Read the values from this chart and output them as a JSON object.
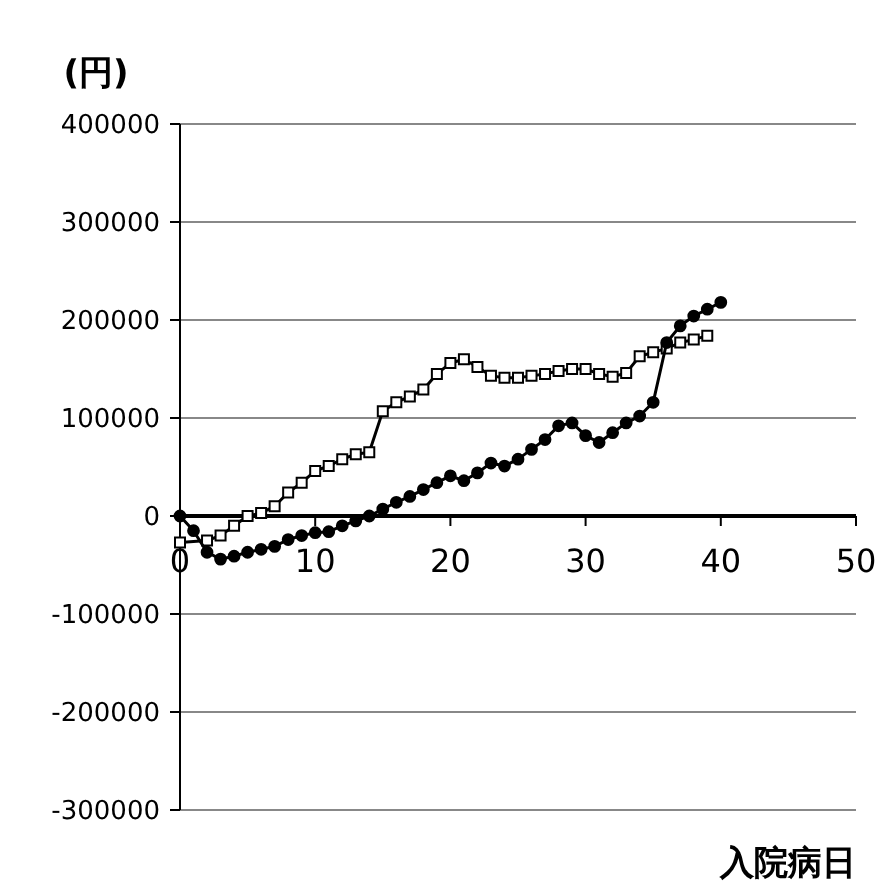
{
  "chart_data": {
    "type": "line",
    "ylabel": "(円)",
    "xlabel": "入院病日",
    "xlim": [
      0,
      50
    ],
    "xticks": [
      0,
      10,
      20,
      30,
      40,
      50
    ],
    "ylim": [
      -300000,
      400000
    ],
    "yticks": [
      -300000,
      -200000,
      -100000,
      0,
      100000,
      200000,
      300000,
      400000
    ],
    "grid": "y",
    "series": [
      {
        "color": "#000000",
        "marker": "square",
        "x": [
          0,
          2,
          3,
          4,
          5,
          6,
          7,
          8,
          9,
          10,
          11,
          12,
          13,
          14,
          15,
          16,
          17,
          18,
          19,
          20,
          21,
          22,
          23,
          24,
          25,
          26,
          27,
          28,
          29,
          30,
          31,
          32,
          33,
          34,
          35,
          36,
          37,
          38,
          39
        ],
        "values": [
          -27000,
          -25000,
          -20000,
          -10000,
          0,
          3000,
          10000,
          24000,
          34000,
          46000,
          51000,
          58000,
          63000,
          65000,
          107000,
          116000,
          122000,
          129000,
          145000,
          156000,
          160000,
          152000,
          143000,
          141000,
          141000,
          143000,
          145000,
          148000,
          150000,
          150000,
          145000,
          142000,
          146000,
          163000,
          167000,
          171000,
          177000,
          180000,
          184000
        ]
      },
      {
        "color": "#000000",
        "marker": "circle",
        "x": [
          0,
          1,
          2,
          3,
          4,
          5,
          6,
          7,
          8,
          9,
          10,
          11,
          12,
          13,
          14,
          15,
          16,
          17,
          18,
          19,
          20,
          21,
          22,
          23,
          24,
          25,
          26,
          27,
          28,
          29,
          30,
          31,
          32,
          33,
          34,
          35,
          36,
          37,
          38,
          39,
          40
        ],
        "values": [
          0,
          -15000,
          -37000,
          -44000,
          -41000,
          -37000,
          -34000,
          -31000,
          -24000,
          -20000,
          -17000,
          -16000,
          -10000,
          -5000,
          0,
          7000,
          14000,
          20000,
          27000,
          34000,
          41000,
          36000,
          44000,
          54000,
          51000,
          58000,
          68000,
          78000,
          92000,
          95000,
          82000,
          75000,
          85000,
          95000,
          102000,
          116000,
          177000,
          194000,
          204000,
          211000,
          218000
        ]
      }
    ]
  }
}
